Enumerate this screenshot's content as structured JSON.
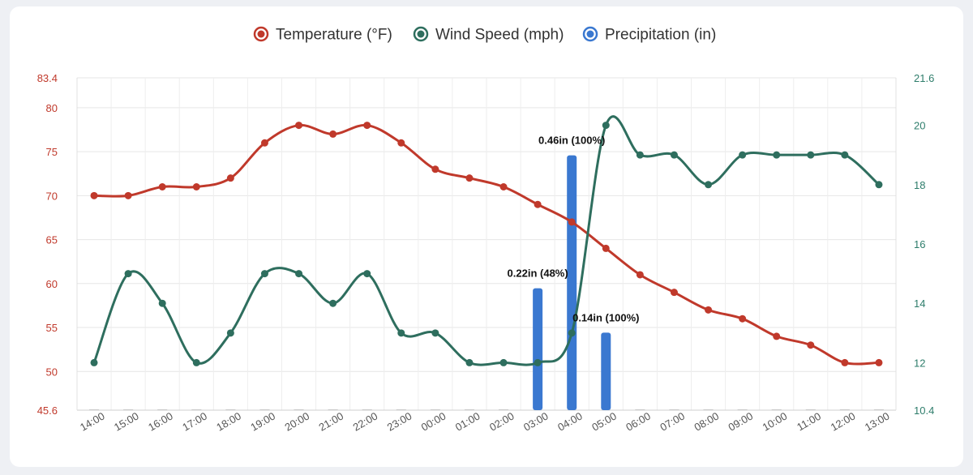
{
  "chart_data": {
    "type": "line+bar",
    "title": "",
    "categories": [
      "14:00",
      "15:00",
      "16:00",
      "17:00",
      "18:00",
      "19:00",
      "20:00",
      "21:00",
      "22:00",
      "23:00",
      "00:00",
      "01:00",
      "02:00",
      "03:00",
      "04:00",
      "05:00",
      "06:00",
      "07:00",
      "08:00",
      "09:00",
      "10:00",
      "11:00",
      "12:00",
      "13:00"
    ],
    "legend": {
      "placement": "top-center"
    },
    "grid": true,
    "axes": {
      "y_left": {
        "min": 45.6,
        "max": 83.4,
        "ticks": [
          45.6,
          50,
          55,
          60,
          65,
          70,
          75,
          80,
          83.4
        ],
        "color": "#c0392b"
      },
      "y_right": {
        "min": 10.4,
        "max": 21.6,
        "ticks": [
          10.4,
          12,
          14,
          16,
          18,
          20,
          21.6
        ],
        "color": "#2e7d6b"
      },
      "y_precip": {
        "min": 0,
        "max": 0.6
      }
    },
    "series": [
      {
        "name": "Temperature (°F)",
        "type": "line",
        "axis": "left",
        "color": "#c0392b",
        "values": [
          70,
          70,
          71,
          71,
          72,
          76,
          78,
          77,
          78,
          76,
          73,
          72,
          71,
          69,
          67,
          64,
          61,
          59,
          57,
          56,
          54,
          53,
          51,
          51
        ]
      },
      {
        "name": "Wind Speed (mph)",
        "type": "line",
        "axis": "right",
        "color": "#2e6e5e",
        "values": [
          12,
          15,
          14,
          12,
          13,
          15,
          15,
          14,
          15,
          13,
          13,
          12,
          12,
          12,
          13,
          20,
          19,
          19,
          18,
          19,
          19,
          19,
          19,
          18
        ]
      },
      {
        "name": "Precipitation (in)",
        "type": "bar",
        "axis": "precip",
        "color": "#3a78d0",
        "values": [
          0,
          0,
          0,
          0,
          0,
          0,
          0,
          0,
          0,
          0,
          0,
          0,
          0,
          0.22,
          0.46,
          0.14,
          0,
          0,
          0,
          0,
          0,
          0,
          0,
          0
        ],
        "labels": [
          "",
          "",
          "",
          "",
          "",
          "",
          "",
          "",
          "",
          "",
          "",
          "",
          "",
          "0.22in (48%)",
          "0.46in (100%)",
          "0.14in (100%)",
          "",
          "",
          "",
          "",
          "",
          "",
          "",
          ""
        ]
      }
    ]
  }
}
